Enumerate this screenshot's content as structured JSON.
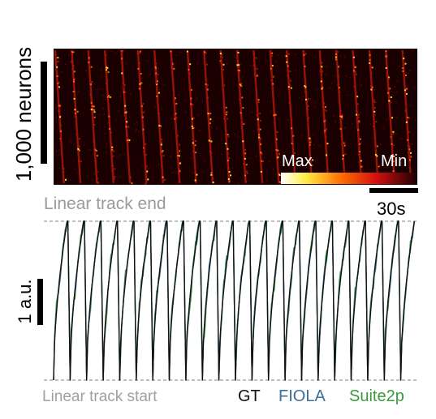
{
  "figure": {
    "scale_neurons_label": "1,000 neurons",
    "scale_time_label": "30s",
    "scale_amp_label": "1 a.u.",
    "colorbar": {
      "max_label": "Max",
      "min_label": "Min"
    },
    "track_end_label": "Linear track end",
    "track_start_label": "Linear track start"
  },
  "colors": {
    "gt": "#111111",
    "fiola": "#3f6f96",
    "suite2p": "#3c9a3c",
    "dashed": "#9a9a9a",
    "heat_bg": "#1a0000"
  },
  "chart_data": [
    {
      "type": "heatmap",
      "title": "",
      "ylabel": "1,000 neurons",
      "colorbar": [
        "Max",
        "Min"
      ],
      "scale_bar_time": "30s",
      "n_traversals": 22,
      "grid": false
    },
    {
      "type": "line",
      "title": "",
      "xlabel": "",
      "ylabel": "1 a.u.",
      "ylim": [
        0,
        1
      ],
      "y_reference_lines": [
        {
          "label": "Linear track start",
          "value": 0
        },
        {
          "label": "Linear track end",
          "value": 1
        }
      ],
      "lap_starts": [
        0,
        22,
        44,
        66,
        88,
        110,
        132,
        154,
        176,
        198,
        220,
        242,
        264,
        286,
        308,
        330,
        352,
        374,
        396,
        418,
        440,
        462
      ],
      "lap_ends": [
        18,
        40,
        62,
        84,
        106,
        128,
        150,
        172,
        194,
        216,
        238,
        260,
        282,
        304,
        326,
        348,
        370,
        392,
        414,
        436,
        458,
        480
      ],
      "x_range": [
        0,
        484
      ],
      "legend_position": "bottom-right",
      "series": [
        {
          "name": "GT",
          "color": "#111111"
        },
        {
          "name": "FIOLA",
          "color": "#3f6f96"
        },
        {
          "name": "Suite2p",
          "color": "#3c9a3c"
        }
      ]
    }
  ]
}
